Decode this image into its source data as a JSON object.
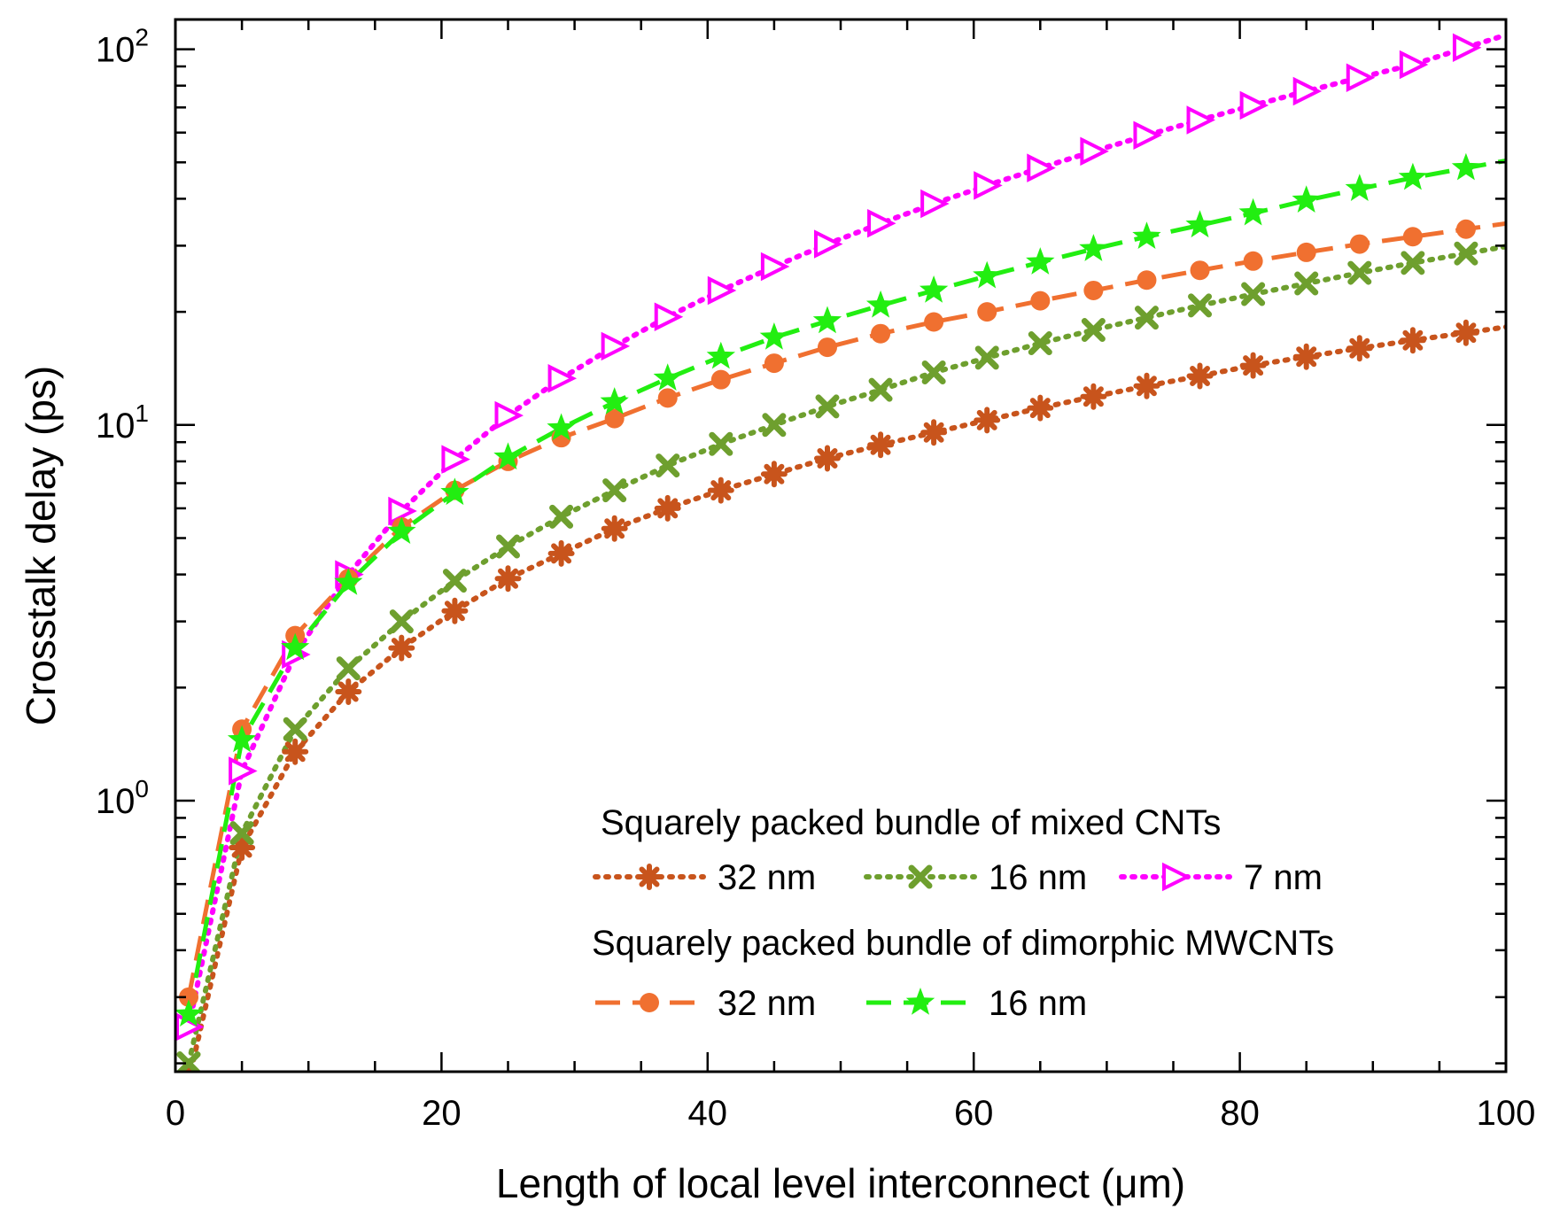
{
  "chart_data": {
    "type": "line",
    "title": "",
    "xlabel": "Length of local level interconnect (μm)",
    "ylabel": "Crosstalk delay (ps)",
    "xlim": [
      0,
      100
    ],
    "ylim": [
      0.19,
      120
    ],
    "yscale": "log",
    "xticks": [
      0,
      20,
      40,
      60,
      80,
      100
    ],
    "xtick_labels": [
      "0",
      "20",
      "40",
      "60",
      "80",
      "100"
    ],
    "yticks": [
      1,
      10,
      100
    ],
    "ytick_labels": [
      {
        "base": "10",
        "exp": "0"
      },
      {
        "base": "10",
        "exp": "1"
      },
      {
        "base": "10",
        "exp": "2"
      }
    ],
    "grid": false,
    "legend": {
      "group1_title": "Squarely packed bundle of mixed CNTs",
      "group2_title": "Squarely packed bundle of dimorphic MWCNTs",
      "placement": "bottom-right"
    },
    "x": [
      1,
      5,
      9,
      13,
      17,
      21,
      25,
      29,
      33,
      37,
      41,
      45,
      49,
      53,
      57,
      61,
      65,
      69,
      73,
      77,
      81,
      85,
      89,
      93,
      97
    ],
    "series": [
      {
        "name": "32 nm",
        "group": "mixed",
        "color": "#C8541C",
        "dash": "dotted",
        "marker": "asterisk",
        "values": [
          0.18,
          0.75,
          1.35,
          1.95,
          2.55,
          3.2,
          3.9,
          4.55,
          5.3,
          6.0,
          6.7,
          7.4,
          8.15,
          8.85,
          9.55,
          10.3,
          11.1,
          11.9,
          12.7,
          13.5,
          14.4,
          15.2,
          16.0,
          16.8,
          17.6
        ]
      },
      {
        "name": "16 nm",
        "group": "mixed",
        "color": "#6E9F2E",
        "dash": "dotted",
        "marker": "x",
        "values": [
          0.2,
          0.82,
          1.55,
          2.25,
          3.0,
          3.85,
          4.75,
          5.7,
          6.7,
          7.8,
          8.9,
          10.0,
          11.2,
          12.4,
          13.8,
          15.1,
          16.5,
          17.9,
          19.3,
          20.8,
          22.3,
          23.8,
          25.4,
          27.0,
          28.6
        ]
      },
      {
        "name": "7 nm",
        "group": "mixed",
        "color": "#FF00FF",
        "dash": "dotted",
        "marker": "triangle-right-open",
        "values": [
          0.25,
          1.2,
          2.45,
          4.0,
          5.9,
          8.1,
          10.6,
          13.3,
          16.2,
          19.4,
          22.8,
          26.4,
          30.3,
          34.4,
          38.8,
          43.4,
          48.3,
          53.5,
          59.0,
          64.8,
          70.9,
          77.3,
          84.0,
          91.0,
          101.0
        ]
      },
      {
        "name": "32 nm",
        "group": "dimorphic",
        "color": "#F07030",
        "dash": "dashed",
        "marker": "circle",
        "values": [
          0.3,
          1.55,
          2.75,
          3.9,
          5.35,
          6.7,
          8.0,
          9.25,
          10.4,
          11.8,
          13.2,
          14.6,
          16.1,
          17.5,
          18.8,
          20.0,
          21.4,
          22.8,
          24.3,
          25.8,
          27.3,
          28.8,
          30.3,
          31.7,
          33.2
        ]
      },
      {
        "name": "16 nm",
        "group": "dimorphic",
        "color": "#22EE11",
        "dash": "dashed",
        "marker": "star",
        "values": [
          0.27,
          1.45,
          2.55,
          3.8,
          5.2,
          6.6,
          8.2,
          9.8,
          11.5,
          13.3,
          15.2,
          17.1,
          18.9,
          20.8,
          22.8,
          24.9,
          27.1,
          29.4,
          31.7,
          34.0,
          36.6,
          39.6,
          42.5,
          45.5,
          48.3
        ]
      }
    ]
  }
}
